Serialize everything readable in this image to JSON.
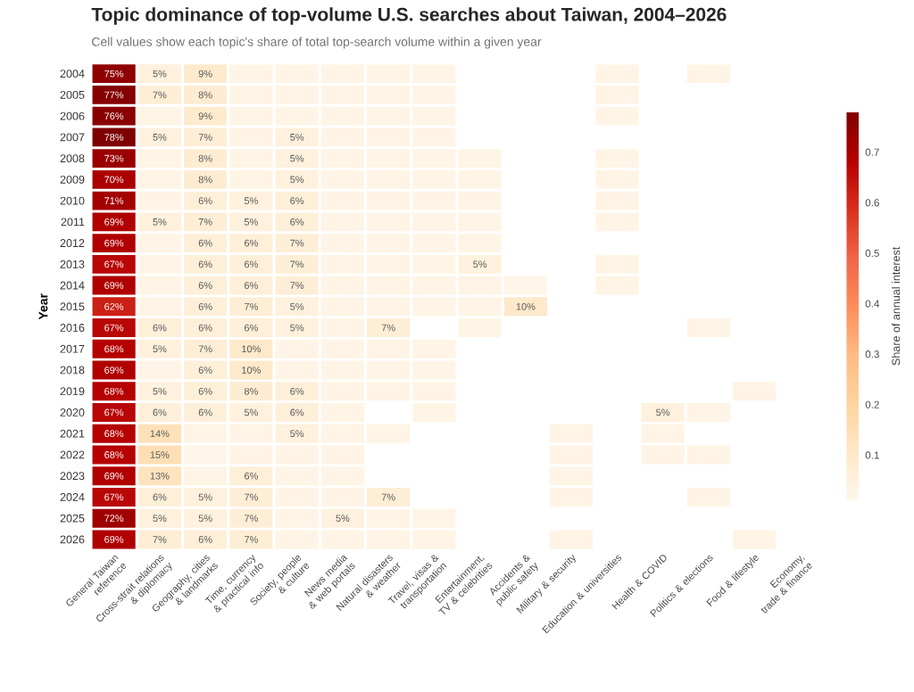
{
  "chart_data": {
    "type": "heatmap",
    "title": "Topic dominance of top-volume U.S. searches about Taiwan, 2004–2026",
    "subtitle": "Cell values show each topic's share of total top-search volume within a given year",
    "ylabel": "Year",
    "clabel": "Share of annual interest",
    "categories": [
      "General Taiwan reference",
      "Cross-strait relations & diplomacy",
      "Geography, cities & landmarks",
      "Time, currency & practical info",
      "Society, people & culture",
      "News media & web portals",
      "Natural disasters & weather",
      "Travel, visas & transportation",
      "Entertainment, TV & celebrities",
      "Accidents & public safety",
      "Military & security",
      "Education & universities",
      "Health & COVID",
      "Politics & elections",
      "Food & lifestyle",
      "Economy, trade & finance"
    ],
    "y_categories": [
      "2004",
      "2005",
      "2006",
      "2007",
      "2008",
      "2009",
      "2010",
      "2011",
      "2012",
      "2013",
      "2014",
      "2015",
      "2016",
      "2017",
      "2018",
      "2019",
      "2020",
      "2021",
      "2022",
      "2023",
      "2024",
      "2025",
      "2026"
    ],
    "cells": [
      [
        0.75,
        0.05,
        0.09,
        0.03,
        0.03,
        0.03,
        0.03,
        0.03,
        null,
        null,
        null,
        0.03,
        null,
        0.03,
        null,
        null
      ],
      [
        0.77,
        0.07,
        0.08,
        0.03,
        0.03,
        0.03,
        0.03,
        0.03,
        null,
        null,
        null,
        0.03,
        null,
        null,
        null,
        null
      ],
      [
        0.76,
        0.03,
        0.09,
        0.03,
        0.03,
        0.03,
        0.03,
        0.03,
        null,
        null,
        null,
        0.03,
        null,
        null,
        null,
        null
      ],
      [
        0.78,
        0.05,
        0.07,
        0.03,
        0.05,
        0.03,
        0.03,
        0.03,
        null,
        null,
        null,
        null,
        null,
        null,
        null,
        null
      ],
      [
        0.73,
        0.03,
        0.08,
        0.03,
        0.05,
        0.03,
        0.03,
        0.03,
        0.03,
        null,
        null,
        0.03,
        null,
        null,
        null,
        null
      ],
      [
        0.7,
        0.03,
        0.08,
        0.03,
        0.05,
        0.03,
        0.03,
        0.03,
        0.03,
        null,
        null,
        0.03,
        null,
        null,
        null,
        null
      ],
      [
        0.71,
        0.03,
        0.06,
        0.05,
        0.06,
        0.03,
        0.03,
        0.03,
        0.03,
        null,
        null,
        0.03,
        null,
        null,
        null,
        null
      ],
      [
        0.69,
        0.05,
        0.07,
        0.05,
        0.06,
        0.03,
        0.03,
        0.03,
        0.03,
        null,
        null,
        0.03,
        null,
        null,
        null,
        null
      ],
      [
        0.69,
        0.03,
        0.06,
        0.06,
        0.07,
        0.03,
        0.03,
        0.03,
        0.03,
        null,
        null,
        null,
        null,
        null,
        null,
        null
      ],
      [
        0.67,
        0.03,
        0.06,
        0.06,
        0.07,
        0.03,
        0.03,
        0.03,
        0.05,
        null,
        null,
        0.03,
        null,
        null,
        null,
        null
      ],
      [
        0.69,
        0.03,
        0.06,
        0.06,
        0.07,
        0.03,
        0.03,
        0.03,
        0.03,
        0.02,
        null,
        0.03,
        null,
        null,
        null,
        null
      ],
      [
        0.62,
        0.03,
        0.06,
        0.07,
        0.05,
        0.03,
        0.03,
        0.03,
        0.03,
        0.1,
        null,
        null,
        null,
        null,
        null,
        null
      ],
      [
        0.67,
        0.06,
        0.06,
        0.06,
        0.05,
        0.03,
        0.07,
        null,
        0.03,
        null,
        null,
        null,
        null,
        0.03,
        null,
        null
      ],
      [
        0.68,
        0.05,
        0.07,
        0.1,
        0.03,
        0.03,
        0.03,
        0.03,
        null,
        null,
        null,
        null,
        null,
        null,
        null,
        null
      ],
      [
        0.69,
        0.03,
        0.06,
        0.1,
        0.03,
        0.03,
        0.03,
        0.03,
        null,
        null,
        null,
        null,
        null,
        null,
        null,
        null
      ],
      [
        0.68,
        0.05,
        0.06,
        0.08,
        0.06,
        0.03,
        0.03,
        0.03,
        null,
        null,
        null,
        null,
        null,
        null,
        0.03,
        null
      ],
      [
        0.67,
        0.06,
        0.06,
        0.05,
        0.06,
        0.03,
        null,
        0.03,
        null,
        null,
        null,
        null,
        0.05,
        0.03,
        null,
        null
      ],
      [
        0.68,
        0.14,
        0.03,
        0.03,
        0.05,
        0.03,
        0.03,
        null,
        null,
        null,
        0.03,
        null,
        0.03,
        null,
        null,
        null
      ],
      [
        0.68,
        0.15,
        0.02,
        0.03,
        0.03,
        0.03,
        null,
        null,
        null,
        null,
        0.03,
        null,
        0.03,
        0.03,
        null,
        null
      ],
      [
        0.69,
        0.13,
        0.03,
        0.06,
        0.03,
        0.03,
        null,
        null,
        null,
        null,
        0.03,
        null,
        null,
        null,
        null,
        null
      ],
      [
        0.67,
        0.06,
        0.05,
        0.07,
        0.03,
        0.03,
        0.07,
        null,
        null,
        null,
        0.03,
        null,
        null,
        0.03,
        null,
        null
      ],
      [
        0.72,
        0.05,
        0.05,
        0.07,
        0.03,
        0.05,
        0.03,
        0.03,
        null,
        null,
        null,
        null,
        null,
        null,
        null,
        null
      ],
      [
        0.69,
        0.07,
        0.06,
        0.07,
        0.03,
        0.03,
        0.03,
        0.03,
        null,
        null,
        0.03,
        null,
        null,
        null,
        0.03,
        null
      ]
    ],
    "cell_labels": [
      [
        "75%",
        "5%",
        "9%",
        null,
        null,
        null,
        null,
        null,
        null,
        null,
        null,
        null,
        null,
        null,
        null,
        null
      ],
      [
        "77%",
        "7%",
        "8%",
        null,
        null,
        null,
        null,
        null,
        null,
        null,
        null,
        null,
        null,
        null,
        null,
        null
      ],
      [
        "76%",
        null,
        "9%",
        null,
        null,
        null,
        null,
        null,
        null,
        null,
        null,
        null,
        null,
        null,
        null,
        null
      ],
      [
        "78%",
        "5%",
        "7%",
        null,
        "5%",
        null,
        null,
        null,
        null,
        null,
        null,
        null,
        null,
        null,
        null,
        null
      ],
      [
        "73%",
        null,
        "8%",
        null,
        "5%",
        null,
        null,
        null,
        null,
        null,
        null,
        null,
        null,
        null,
        null,
        null
      ],
      [
        "70%",
        null,
        "8%",
        null,
        "5%",
        null,
        null,
        null,
        null,
        null,
        null,
        null,
        null,
        null,
        null,
        null
      ],
      [
        "71%",
        null,
        "6%",
        "5%",
        "6%",
        null,
        null,
        null,
        null,
        null,
        null,
        null,
        null,
        null,
        null,
        null
      ],
      [
        "69%",
        "5%",
        "7%",
        "5%",
        "6%",
        null,
        null,
        null,
        null,
        null,
        null,
        null,
        null,
        null,
        null,
        null
      ],
      [
        "69%",
        null,
        "6%",
        "6%",
        "7%",
        null,
        null,
        null,
        null,
        null,
        null,
        null,
        null,
        null,
        null,
        null
      ],
      [
        "67%",
        null,
        "6%",
        "6%",
        "7%",
        null,
        null,
        null,
        "5%",
        null,
        null,
        null,
        null,
        null,
        null,
        null
      ],
      [
        "69%",
        null,
        "6%",
        "6%",
        "7%",
        null,
        null,
        null,
        null,
        null,
        null,
        null,
        null,
        null,
        null,
        null
      ],
      [
        "62%",
        null,
        "6%",
        "7%",
        "5%",
        null,
        null,
        null,
        null,
        "10%",
        null,
        null,
        null,
        null,
        null,
        null
      ],
      [
        "67%",
        "6%",
        "6%",
        "6%",
        "5%",
        null,
        "7%",
        null,
        null,
        null,
        null,
        null,
        null,
        null,
        null,
        null
      ],
      [
        "68%",
        "5%",
        "7%",
        "10%",
        null,
        null,
        null,
        null,
        null,
        null,
        null,
        null,
        null,
        null,
        null,
        null
      ],
      [
        "69%",
        null,
        "6%",
        "10%",
        null,
        null,
        null,
        null,
        null,
        null,
        null,
        null,
        null,
        null,
        null,
        null
      ],
      [
        "68%",
        "5%",
        "6%",
        "8%",
        "6%",
        null,
        null,
        null,
        null,
        null,
        null,
        null,
        null,
        null,
        null,
        null
      ],
      [
        "67%",
        "6%",
        "6%",
        "5%",
        "6%",
        null,
        null,
        null,
        null,
        null,
        null,
        null,
        "5%",
        null,
        null,
        null
      ],
      [
        "68%",
        "14%",
        null,
        null,
        "5%",
        null,
        null,
        null,
        null,
        null,
        null,
        null,
        null,
        null,
        null,
        null
      ],
      [
        "68%",
        "15%",
        null,
        null,
        null,
        null,
        null,
        null,
        null,
        null,
        null,
        null,
        null,
        null,
        null,
        null
      ],
      [
        "69%",
        "13%",
        null,
        "6%",
        null,
        null,
        null,
        null,
        null,
        null,
        null,
        null,
        null,
        null,
        null,
        null
      ],
      [
        "67%",
        "6%",
        "5%",
        "7%",
        null,
        null,
        "7%",
        null,
        null,
        null,
        null,
        null,
        null,
        null,
        null,
        null
      ],
      [
        "72%",
        "5%",
        "5%",
        "7%",
        null,
        "5%",
        null,
        null,
        null,
        null,
        null,
        null,
        null,
        null,
        null,
        null
      ],
      [
        "69%",
        "7%",
        "6%",
        "7%",
        null,
        null,
        null,
        null,
        null,
        null,
        null,
        null,
        null,
        null,
        null,
        null
      ]
    ],
    "clim": [
      0.01,
      0.78
    ],
    "cticks": [
      0.1,
      0.2,
      0.3,
      0.4,
      0.5,
      0.6,
      0.7
    ]
  }
}
